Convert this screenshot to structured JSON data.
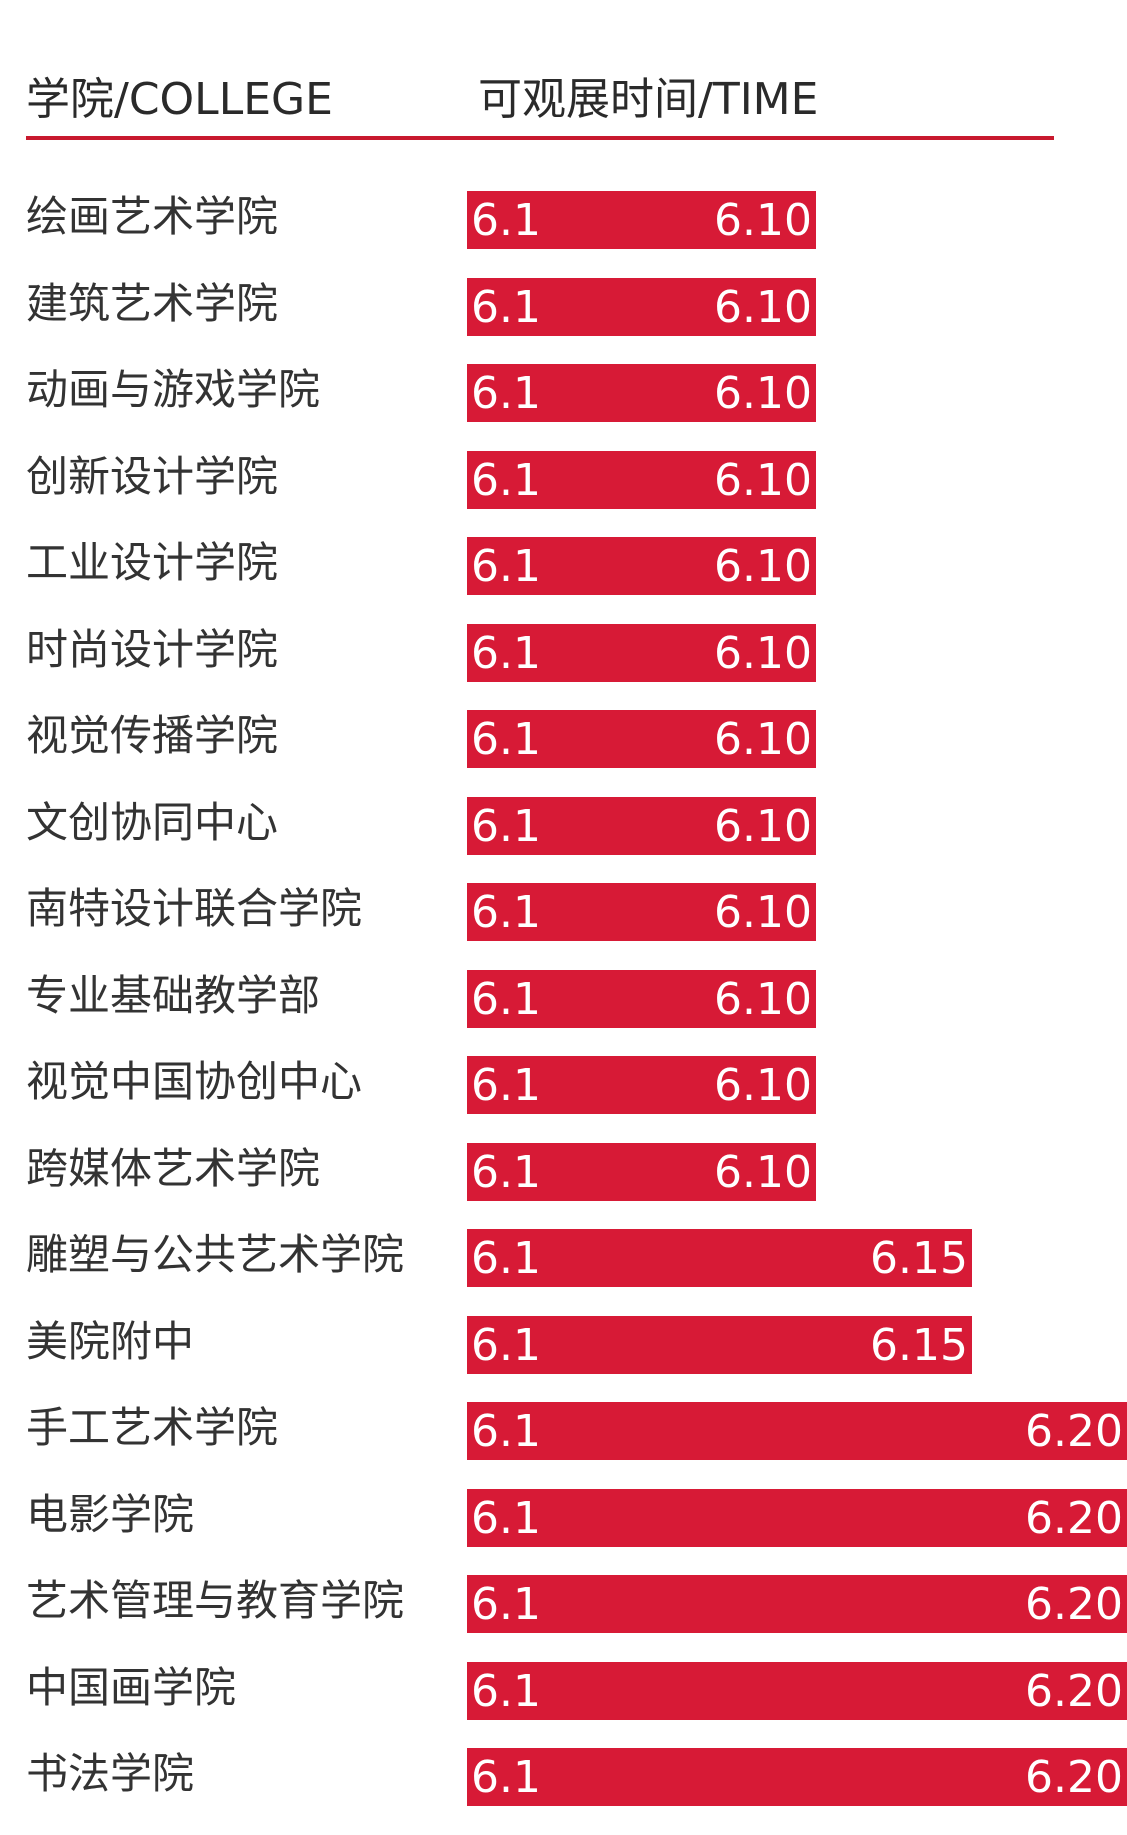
{
  "header": {
    "college_label": "学院/COLLEGE",
    "time_label": "可观展时间/TIME",
    "accent_color": "#c8192e"
  },
  "chart_data": {
    "type": "bar",
    "orientation": "horizontal",
    "title": "",
    "xlabel": "可观展时间/TIME",
    "ylabel": "学院/COLLEGE",
    "bar_color": "#d71a36",
    "start_date": "6.1",
    "categories": [
      "绘画艺术学院",
      "建筑艺术学院",
      "动画与游戏学院",
      "创新设计学院",
      "工业设计学院",
      "时尚设计学院",
      "视觉传播学院",
      "文创协同中心",
      "南特设计联合学院",
      "专业基础教学部",
      "视觉中国协创中心",
      "跨媒体艺术学院",
      "雕塑与公共艺术学院",
      "美院附中",
      "手工艺术学院",
      "电影学院",
      "艺术管理与教育学院",
      "中国画学院",
      "书法学院"
    ],
    "end_dates": [
      "6.10",
      "6.10",
      "6.10",
      "6.10",
      "6.10",
      "6.10",
      "6.10",
      "6.10",
      "6.10",
      "6.10",
      "6.10",
      "6.10",
      "6.15",
      "6.15",
      "6.20",
      "6.20",
      "6.20",
      "6.20",
      "6.20"
    ]
  }
}
